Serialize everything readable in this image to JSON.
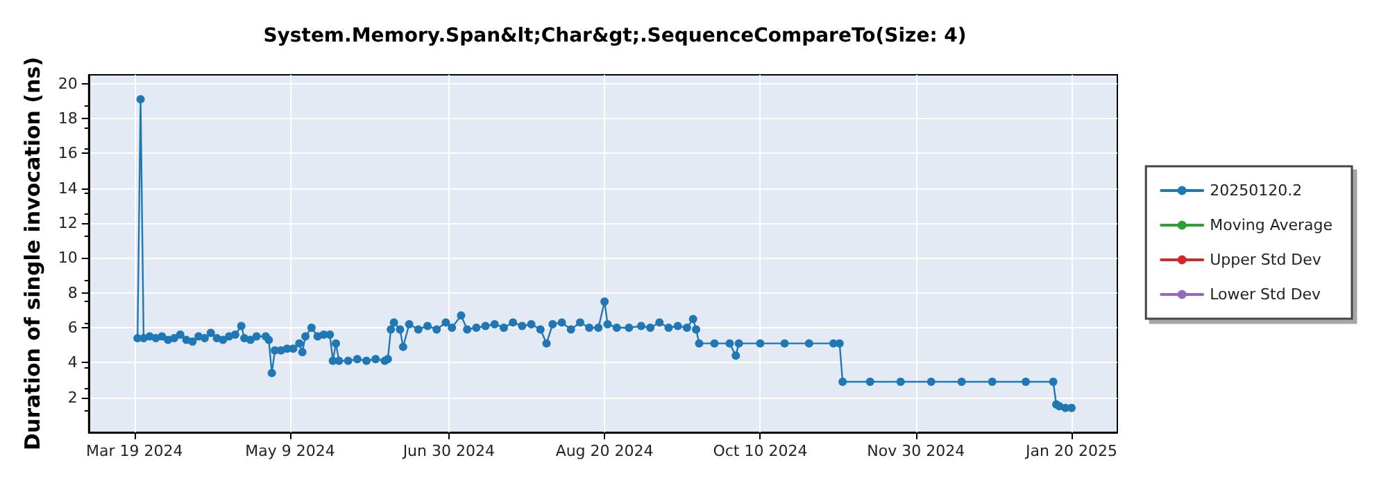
{
  "chart_data": {
    "type": "line",
    "title": "System.Memory.Span&lt;Char&gt;.SequenceCompareTo(Size: 4)",
    "ylabel": "Duration of single invocation (ns)",
    "ylim": [
      0,
      20.5
    ],
    "yticks": [
      2,
      4,
      6,
      8,
      10,
      12,
      14,
      16,
      18,
      20
    ],
    "xlim": [
      "2024-03-04",
      "2025-02-04"
    ],
    "xticks": [
      {
        "value": "2024-03-19",
        "label": "Mar 19 2024"
      },
      {
        "value": "2024-05-09",
        "label": "May 9 2024"
      },
      {
        "value": "2024-06-30",
        "label": "Jun 30 2024"
      },
      {
        "value": "2024-08-20",
        "label": "Aug 20 2024"
      },
      {
        "value": "2024-10-10",
        "label": "Oct 10 2024"
      },
      {
        "value": "2024-11-30",
        "label": "Nov 30 2024"
      },
      {
        "value": "2025-01-20",
        "label": "Jan 20 2025"
      }
    ],
    "grid": true,
    "legend": "right",
    "marker": "circle",
    "line_style": "solid",
    "series": [
      {
        "name": "20250120.2",
        "color": "#1f77b4",
        "x": [
          "2024-03-20",
          "2024-03-21",
          "2024-03-22",
          "2024-03-24",
          "2024-03-26",
          "2024-03-28",
          "2024-03-30",
          "2024-04-01",
          "2024-04-03",
          "2024-04-05",
          "2024-04-07",
          "2024-04-09",
          "2024-04-11",
          "2024-04-13",
          "2024-04-15",
          "2024-04-17",
          "2024-04-19",
          "2024-04-21",
          "2024-04-23",
          "2024-04-24",
          "2024-04-26",
          "2024-04-28",
          "2024-05-01",
          "2024-05-02",
          "2024-05-03",
          "2024-05-04",
          "2024-05-06",
          "2024-05-08",
          "2024-05-10",
          "2024-05-12",
          "2024-05-13",
          "2024-05-14",
          "2024-05-16",
          "2024-05-18",
          "2024-05-20",
          "2024-05-22",
          "2024-05-23",
          "2024-05-24",
          "2024-05-25",
          "2024-05-28",
          "2024-05-31",
          "2024-06-03",
          "2024-06-06",
          "2024-06-09",
          "2024-06-10",
          "2024-06-11",
          "2024-06-12",
          "2024-06-14",
          "2024-06-15",
          "2024-06-17",
          "2024-06-20",
          "2024-06-23",
          "2024-06-26",
          "2024-06-29",
          "2024-07-01",
          "2024-07-04",
          "2024-07-06",
          "2024-07-09",
          "2024-07-12",
          "2024-07-15",
          "2024-07-18",
          "2024-07-21",
          "2024-07-24",
          "2024-07-27",
          "2024-07-30",
          "2024-08-01",
          "2024-08-03",
          "2024-08-06",
          "2024-08-09",
          "2024-08-12",
          "2024-08-15",
          "2024-08-18",
          "2024-08-20",
          "2024-08-21",
          "2024-08-24",
          "2024-08-28",
          "2024-09-01",
          "2024-09-04",
          "2024-09-07",
          "2024-09-10",
          "2024-09-13",
          "2024-09-16",
          "2024-09-18",
          "2024-09-19",
          "2024-09-20",
          "2024-09-25",
          "2024-09-30",
          "2024-10-02",
          "2024-10-03",
          "2024-10-10",
          "2024-10-18",
          "2024-10-26",
          "2024-11-03",
          "2024-11-05",
          "2024-11-06",
          "2024-11-15",
          "2024-11-25",
          "2024-12-05",
          "2024-12-15",
          "2024-12-25",
          "2025-01-05",
          "2025-01-14",
          "2025-01-15",
          "2025-01-16",
          "2025-01-18",
          "2025-01-20"
        ],
        "values": [
          5.4,
          19.1,
          5.4,
          5.5,
          5.4,
          5.5,
          5.3,
          5.4,
          5.6,
          5.3,
          5.2,
          5.5,
          5.4,
          5.7,
          5.4,
          5.3,
          5.5,
          5.6,
          6.1,
          5.4,
          5.3,
          5.5,
          5.5,
          5.3,
          3.4,
          4.7,
          4.7,
          4.8,
          4.8,
          5.1,
          4.6,
          5.5,
          6.0,
          5.5,
          5.6,
          5.6,
          4.1,
          5.1,
          4.1,
          4.1,
          4.2,
          4.1,
          4.2,
          4.1,
          4.2,
          5.9,
          6.3,
          5.9,
          4.9,
          6.2,
          5.9,
          6.1,
          5.9,
          6.3,
          6.0,
          6.7,
          5.9,
          6.0,
          6.1,
          6.2,
          6.0,
          6.3,
          6.1,
          6.2,
          5.9,
          5.1,
          6.2,
          6.3,
          5.9,
          6.3,
          6.0,
          6.0,
          7.5,
          6.2,
          6.0,
          6.0,
          6.1,
          6.0,
          6.3,
          6.0,
          6.1,
          6.0,
          6.5,
          5.9,
          5.1,
          5.1,
          5.1,
          4.4,
          5.1,
          5.1,
          5.1,
          5.1,
          5.1,
          5.1,
          2.9,
          2.9,
          2.9,
          2.9,
          2.9,
          2.9,
          2.9,
          2.9,
          1.6,
          1.5,
          1.4,
          1.4
        ]
      },
      {
        "name": "Moving Average",
        "color": "#2ca02c"
      },
      {
        "name": "Upper Std Dev",
        "color": "#d62728"
      },
      {
        "name": "Lower Std Dev",
        "color": "#9467bd"
      }
    ]
  }
}
